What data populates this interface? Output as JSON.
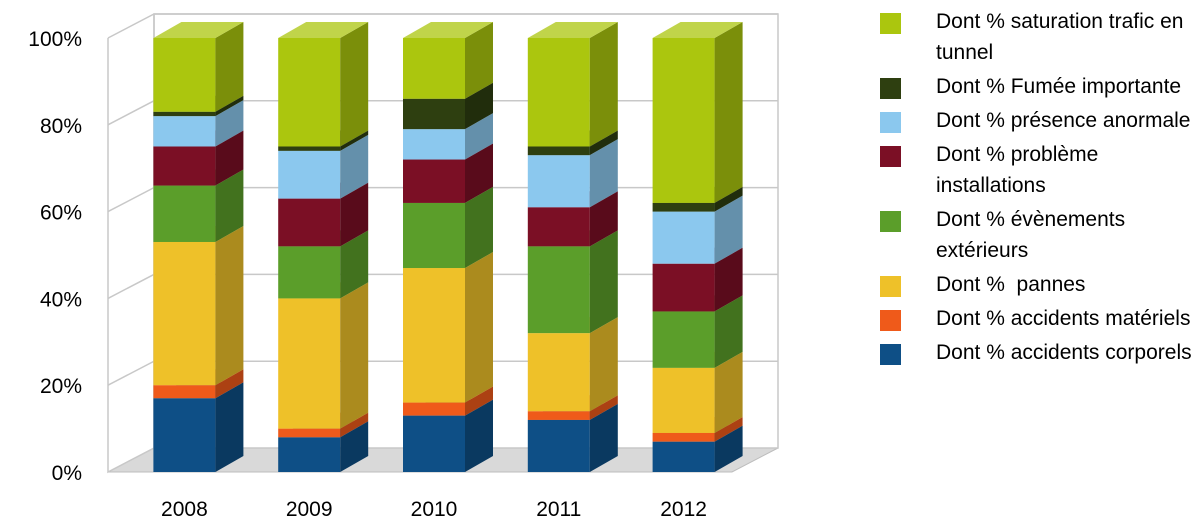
{
  "chart_data": {
    "type": "bar",
    "stacked": true,
    "percent": true,
    "three_d": true,
    "categories": [
      "2008",
      "2009",
      "2010",
      "2011",
      "2012"
    ],
    "y_ticks": [
      "0%",
      "20%",
      "40%",
      "60%",
      "80%",
      "100%"
    ],
    "ylim": [
      0,
      100
    ],
    "grid": true,
    "legend_position": "right",
    "series": [
      {
        "name": "Dont % accidents corporels",
        "color": "#0e4f86",
        "values": [
          17,
          8,
          13,
          12,
          7
        ]
      },
      {
        "name": "Dont % accidents matériels",
        "color": "#ef5a1a",
        "values": [
          3,
          2,
          3,
          2,
          2
        ]
      },
      {
        "name": "Dont %  pannes",
        "color": "#eec129",
        "values": [
          33,
          30,
          31,
          18,
          15
        ]
      },
      {
        "name": "Dont % évènements extérieurs",
        "color": "#5b9e2a",
        "values": [
          13,
          12,
          15,
          20,
          13
        ]
      },
      {
        "name": "Dont % problème installations",
        "color": "#7b0f25",
        "values": [
          9,
          11,
          10,
          9,
          11
        ]
      },
      {
        "name": "Dont % présence anormale",
        "color": "#8bc8ee",
        "values": [
          7,
          11,
          7,
          12,
          12
        ]
      },
      {
        "name": "Dont % Fumée importante",
        "color": "#2e3f10",
        "values": [
          1,
          1,
          7,
          2,
          2
        ]
      },
      {
        "name": "Dont % saturation trafic en tunnel",
        "color": "#abc60e",
        "values": [
          17,
          25,
          14,
          25,
          38
        ]
      }
    ]
  }
}
